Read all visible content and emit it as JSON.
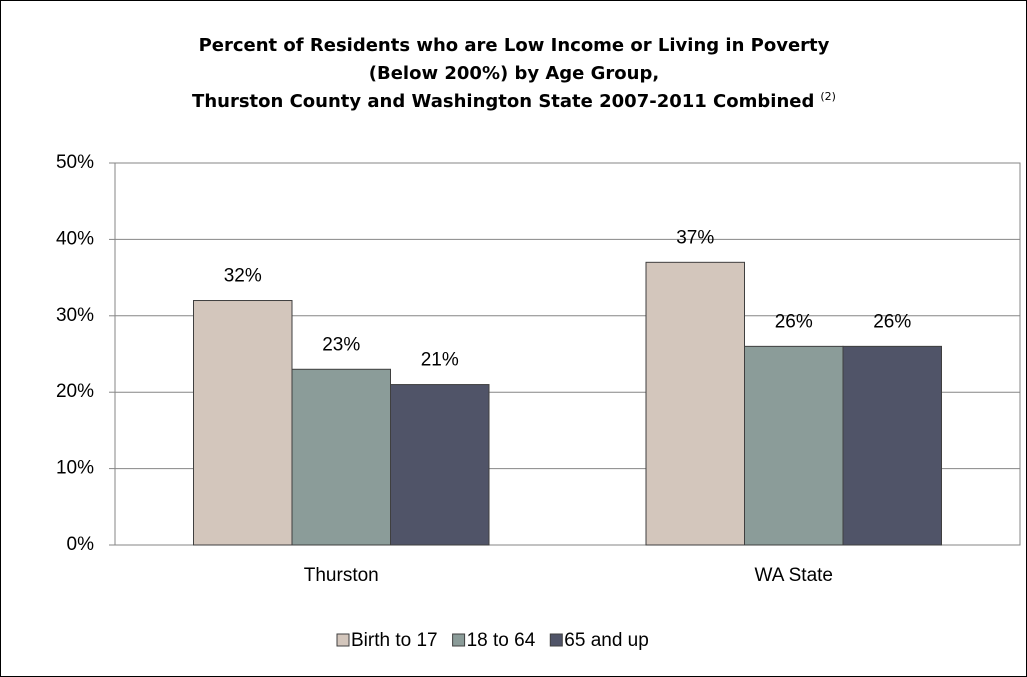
{
  "chart_data": {
    "type": "bar",
    "title": [
      "Percent of Residents who are Low Income or Living in Poverty",
      "(Below 200%) by Age Group,",
      "Thurston County and Washington State 2007-2011 Combined"
    ],
    "title_note": "(2)",
    "categories": [
      "Thurston",
      "WA State"
    ],
    "series": [
      {
        "name": "Birth to 17",
        "color": "#d3c6bc",
        "values": [
          32,
          37
        ],
        "value_labels": [
          "32%",
          "37%"
        ]
      },
      {
        "name": "18 to 64",
        "color": "#8b9c99",
        "values": [
          23,
          26
        ],
        "value_labels": [
          "23%",
          "26%"
        ]
      },
      {
        "name": "65 and up",
        "color": "#505468",
        "values": [
          21,
          26
        ],
        "value_labels": [
          "21%",
          "26%"
        ]
      }
    ],
    "ylim": [
      0,
      50
    ],
    "yticks": [
      {
        "value": 0,
        "label": "0%"
      },
      {
        "value": 10,
        "label": "10%"
      },
      {
        "value": 20,
        "label": "20%"
      },
      {
        "value": 30,
        "label": "30%"
      },
      {
        "value": 40,
        "label": "40%"
      },
      {
        "value": 50,
        "label": "50%"
      }
    ],
    "grid": true,
    "legend": "bottom"
  }
}
